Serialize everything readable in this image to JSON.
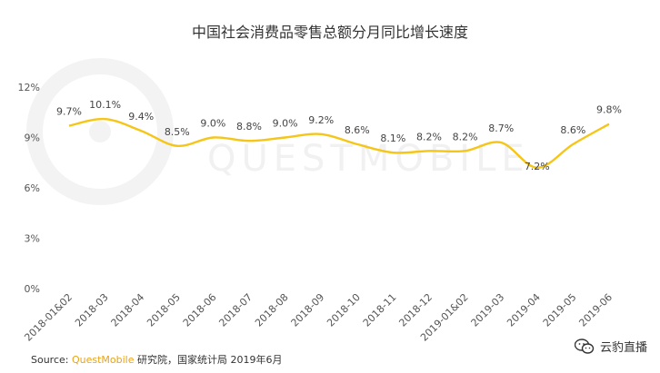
{
  "title": "中国社会消费品零售总额分月同比增长速度",
  "source": {
    "prefix": "Source: ",
    "brand": "QuestMobile",
    "suffix": " 研究院，国家统计局 2019年6月"
  },
  "watermark": "QUESTMOBILE",
  "badge": {
    "text": "云豹直播",
    "icon": "wechat-icon"
  },
  "colors": {
    "line": "#f5c518",
    "grid": "#e6e6e6",
    "text": "#555555"
  },
  "chart_data": {
    "type": "line",
    "title": "中国社会消费品零售总额分月同比增长速度",
    "categories": [
      "2018-01&02",
      "2018-03",
      "2018-04",
      "2018-05",
      "2018-06",
      "2018-07",
      "2018-08",
      "2018-09",
      "2018-10",
      "2018-11",
      "2018-12",
      "2019-01&02",
      "2019-03",
      "2019-04",
      "2019-05",
      "2019-06"
    ],
    "series": [
      {
        "values": [
          9.7,
          10.1,
          9.4,
          8.5,
          9.0,
          8.8,
          9.0,
          9.2,
          8.6,
          8.1,
          8.2,
          8.2,
          8.7,
          7.2,
          8.6,
          9.8
        ],
        "labels": [
          "9.7%",
          "10.1%",
          "9.4%",
          "8.5%",
          "9.0%",
          "8.8%",
          "9.0%",
          "9.2%",
          "8.6%",
          "8.1%",
          "8.2%",
          "8.2%",
          "8.7%",
          "7.2%",
          "8.6%",
          "9.8%"
        ]
      }
    ],
    "ylim": [
      0,
      12
    ],
    "yticks": [
      0,
      3,
      6,
      9,
      12
    ],
    "ytick_labels": [
      "0%",
      "3%",
      "6%",
      "9%",
      "12%"
    ],
    "xlabel": "",
    "ylabel": "",
    "grid": false,
    "legend": "none"
  }
}
